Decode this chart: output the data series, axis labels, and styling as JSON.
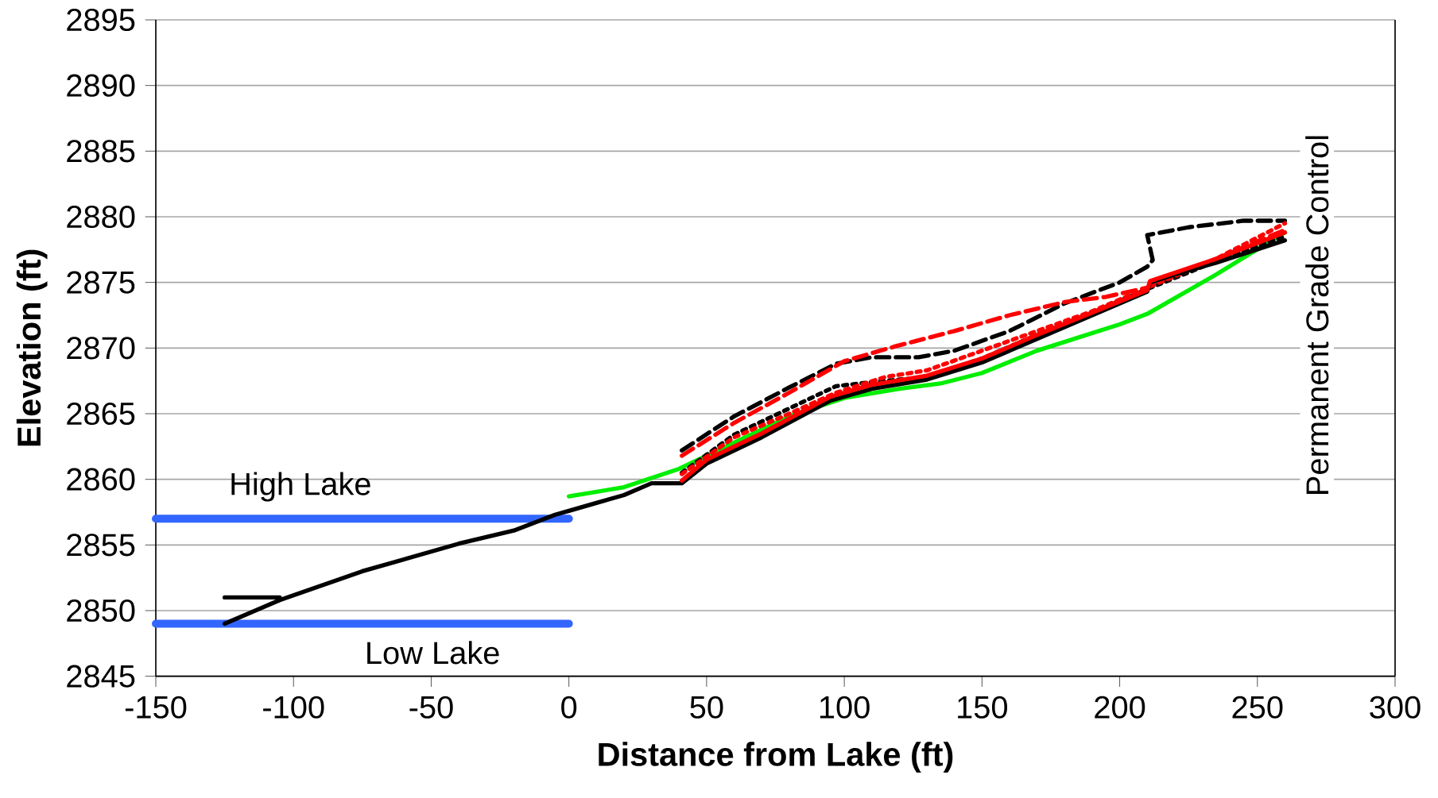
{
  "chart_data": {
    "type": "line",
    "xlabel": "Distance from Lake (ft)",
    "ylabel": "Elevation (ft)",
    "xlim": [
      -150,
      300
    ],
    "xticks": [
      -150,
      -100,
      -50,
      0,
      50,
      100,
      150,
      200,
      250,
      300
    ],
    "ylim": [
      2845,
      2895
    ],
    "yticks": [
      2845,
      2850,
      2855,
      2860,
      2865,
      2870,
      2875,
      2880,
      2885,
      2890,
      2895
    ],
    "grid": "y",
    "annotations": [
      "Permanent Grade Control"
    ],
    "series": [
      {
        "name": "High Lake",
        "color": "#3366ff",
        "line_style": "solid",
        "x": [
          -150,
          0
        ],
        "values": [
          2857,
          2857
        ]
      },
      {
        "name": "Low Lake",
        "color": "#3366ff",
        "line_style": "solid",
        "x": [
          -150,
          0
        ],
        "values": [
          2849,
          2849
        ]
      },
      {
        "color": "#00ee00",
        "line_style": "solid",
        "x": [
          0,
          20,
          40,
          60,
          80,
          100,
          120,
          135,
          150,
          170,
          200,
          210,
          235,
          260
        ],
        "values": [
          2858.7,
          2859.4,
          2860.8,
          2862.8,
          2864.8,
          2866.2,
          2866.9,
          2867.3,
          2868.1,
          2869.8,
          2871.8,
          2872.6,
          2875.6,
          2878.8
        ]
      },
      {
        "color": "#000000",
        "line_style": "dashed",
        "x": [
          41,
          60,
          80,
          97,
          110,
          127,
          140,
          160,
          180,
          200,
          210,
          212,
          210,
          225,
          245,
          260
        ],
        "values": [
          2862.2,
          2864.8,
          2867,
          2868.8,
          2869.3,
          2869.3,
          2869.8,
          2871.3,
          2873.4,
          2875,
          2876.2,
          2876.7,
          2878.6,
          2879.2,
          2879.7,
          2879.7
        ]
      },
      {
        "color": "#ff0000",
        "line_style": "dashed",
        "x": [
          41,
          60,
          80,
          100,
          118,
          140,
          160,
          180,
          195,
          210,
          235,
          260
        ],
        "values": [
          2861.8,
          2864.3,
          2866.6,
          2869,
          2870.1,
          2871.3,
          2872.5,
          2873.5,
          2873.9,
          2874.6,
          2876.8,
          2879
        ]
      },
      {
        "color": "#000000",
        "line_style": "dotted",
        "x": [
          41,
          60,
          80,
          97,
          110,
          130,
          150,
          170,
          190,
          210,
          235,
          260
        ],
        "values": [
          2860.5,
          2863.4,
          2865.4,
          2867.1,
          2867.4,
          2867.8,
          2869.2,
          2871,
          2872.7,
          2874.5,
          2876.6,
          2878.5
        ]
      },
      {
        "color": "#ff0000",
        "line_style": "dotted",
        "x": [
          41,
          60,
          80,
          97,
          115,
          130,
          150,
          170,
          190,
          210,
          235,
          260
        ],
        "values": [
          2860.4,
          2863.2,
          2865,
          2866.6,
          2867.8,
          2868.3,
          2869.8,
          2871.3,
          2872.8,
          2874.6,
          2876.8,
          2879.5
        ]
      },
      {
        "color": "#000000",
        "line_style": "solid",
        "x": [
          -125,
          -105
        ],
        "values": [
          2851,
          2851
        ]
      },
      {
        "color": "#000000",
        "line_style": "solid",
        "x": [
          -125,
          -105,
          -75,
          -40,
          -20,
          -5,
          0,
          10,
          20,
          30,
          41,
          50,
          70,
          95,
          110,
          130,
          150,
          170,
          190,
          200,
          210,
          211,
          220,
          235,
          260
        ],
        "values": [
          2849,
          2850.8,
          2853,
          2855.1,
          2856.1,
          2857.3,
          2857.6,
          2858.2,
          2858.8,
          2859.7,
          2859.7,
          2861.2,
          2863.2,
          2866,
          2866.9,
          2867.6,
          2868.9,
          2870.7,
          2872.5,
          2873.4,
          2874.3,
          2875,
          2875.6,
          2876.5,
          2878.2
        ]
      },
      {
        "color": "#ff0000",
        "line_style": "solid",
        "x": [
          41,
          50,
          70,
          95,
          110,
          130,
          150,
          170,
          190,
          210,
          211,
          235,
          260
        ],
        "values": [
          2859.9,
          2861.5,
          2863.5,
          2866.3,
          2867.2,
          2867.9,
          2869.2,
          2871,
          2872.7,
          2874.4,
          2875.1,
          2876.8,
          2878.8
        ]
      }
    ]
  }
}
